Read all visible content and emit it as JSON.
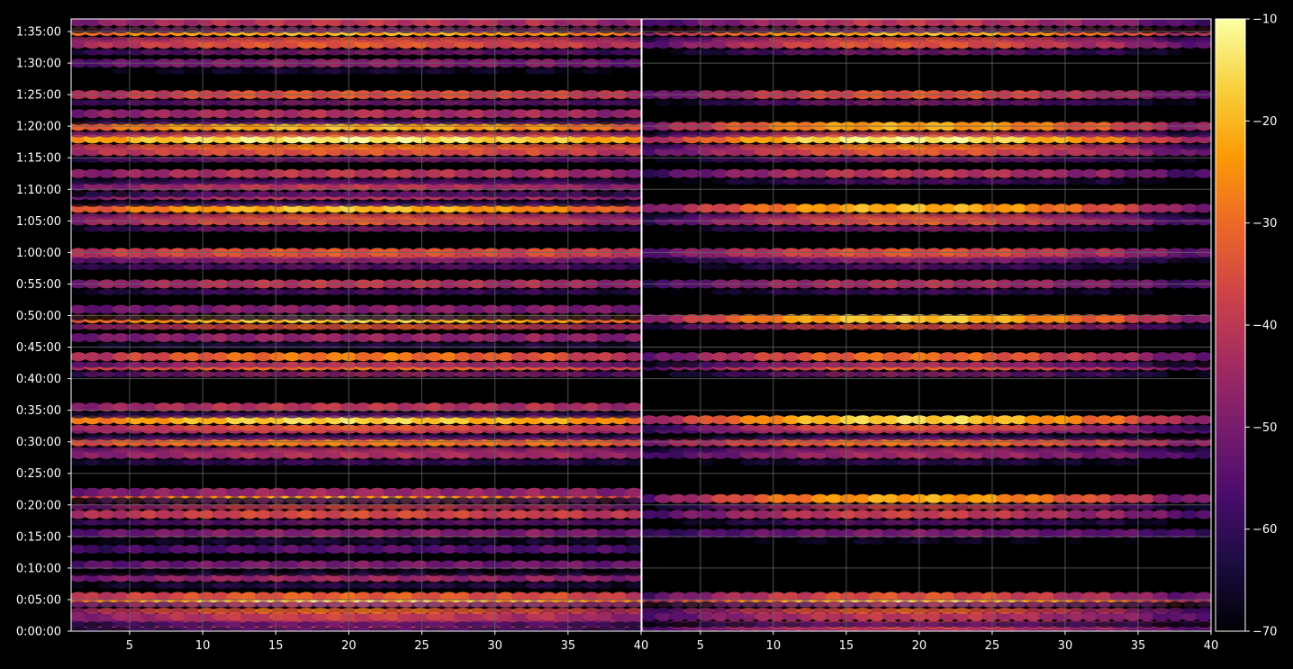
{
  "colors": {
    "background": "#000000",
    "foreground": "#ffffff",
    "grid": "#666666",
    "colormap": "inferno",
    "colormap_stops": [
      "#000004",
      "#1b0c41",
      "#4a0c6b",
      "#781c6d",
      "#a52c60",
      "#cf4446",
      "#ed6925",
      "#fb9b06",
      "#f7d13d",
      "#fcffa4"
    ]
  },
  "chart_data": [
    {
      "type": "heatmap",
      "panel": "left",
      "x_ticks": [
        "5",
        "10",
        "15",
        "20",
        "25",
        "30",
        "35",
        "40"
      ],
      "x_tick_values": [
        5,
        10,
        15,
        20,
        25,
        30,
        35,
        40
      ],
      "xlim": [
        1,
        40
      ],
      "y_ticks": [
        "0:00:00",
        "0:05:00",
        "0:10:00",
        "0:15:00",
        "0:20:00",
        "0:25:00",
        "0:30:00",
        "0:35:00",
        "0:40:00",
        "0:45:00",
        "0:50:00",
        "0:55:00",
        "1:00:00",
        "1:05:00",
        "1:10:00",
        "1:15:00",
        "1:20:00",
        "1:25:00",
        "1:30:00",
        "1:35:00"
      ],
      "y_tick_values_s": [
        0,
        300,
        600,
        900,
        1200,
        1500,
        1800,
        2100,
        2400,
        2700,
        3000,
        3300,
        3600,
        3900,
        4200,
        4500,
        4800,
        5100,
        5400,
        5700
      ],
      "ylim_s": [
        0,
        5820
      ],
      "grid": true,
      "x_columns": 40,
      "bands": [
        {
          "t": 12,
          "base": -52,
          "peak": -40
        },
        {
          "t": 60,
          "base": -48,
          "peak": -35
        },
        {
          "t": 90,
          "base": -52,
          "peak": -42
        },
        {
          "t": 140,
          "base": -50,
          "peak": -38
        },
        {
          "t": 270,
          "base": -29,
          "peak": -14
        },
        {
          "t": 330,
          "base": -42,
          "peak": -32
        },
        {
          "t": 510,
          "base": -52,
          "peak": -45
        },
        {
          "t": 630,
          "base": -56,
          "peak": -50
        },
        {
          "t": 780,
          "base": -60,
          "peak": -55
        },
        {
          "t": 930,
          "base": -55,
          "peak": -48
        },
        {
          "t": 1110,
          "base": -44,
          "peak": -36
        },
        {
          "t": 1260,
          "base": -38,
          "peak": -22
        },
        {
          "t": 1320,
          "base": -52,
          "peak": -45
        },
        {
          "t": 1680,
          "base": -50,
          "peak": -42
        },
        {
          "t": 1800,
          "base": -36,
          "peak": -28
        },
        {
          "t": 1920,
          "base": -48,
          "peak": -40
        },
        {
          "t": 2010,
          "base": -30,
          "peak": -16
        },
        {
          "t": 2130,
          "base": -48,
          "peak": -40
        },
        {
          "t": 2520,
          "base": -42,
          "peak": -30
        },
        {
          "t": 2610,
          "base": -44,
          "peak": -28
        },
        {
          "t": 2790,
          "base": -52,
          "peak": -46
        },
        {
          "t": 2970,
          "base": -34,
          "peak": -17
        },
        {
          "t": 3060,
          "base": -54,
          "peak": -48
        },
        {
          "t": 3300,
          "base": -50,
          "peak": -40
        },
        {
          "t": 3540,
          "base": -46,
          "peak": -38
        },
        {
          "t": 3600,
          "base": -42,
          "peak": -34
        },
        {
          "t": 3900,
          "base": -48,
          "peak": -34
        },
        {
          "t": 4020,
          "base": -36,
          "peak": -19
        },
        {
          "t": 4140,
          "base": -52,
          "peak": -42
        },
        {
          "t": 4230,
          "base": -52,
          "peak": -40
        },
        {
          "t": 4350,
          "base": -50,
          "peak": -40
        },
        {
          "t": 4560,
          "base": -44,
          "peak": -34
        },
        {
          "t": 4680,
          "base": -26,
          "peak": -12
        },
        {
          "t": 4800,
          "base": -34,
          "peak": -20
        },
        {
          "t": 4920,
          "base": -50,
          "peak": -42
        },
        {
          "t": 5100,
          "base": -44,
          "peak": -34
        },
        {
          "t": 5400,
          "base": -56,
          "peak": -48
        },
        {
          "t": 5580,
          "base": -45,
          "peak": -33
        },
        {
          "t": 5700,
          "base": -32,
          "peak": -20
        },
        {
          "t": 5790,
          "base": -50,
          "peak": -40
        }
      ]
    },
    {
      "type": "heatmap",
      "panel": "right",
      "x_ticks": [
        "5",
        "10",
        "15",
        "20",
        "25",
        "30",
        "35",
        "40"
      ],
      "x_tick_values": [
        5,
        10,
        15,
        20,
        25,
        30,
        35,
        40
      ],
      "xlim": [
        1,
        40
      ],
      "ylim_s": [
        0,
        5820
      ],
      "grid": true,
      "x_columns": 40,
      "bands": [
        {
          "t": 12,
          "base": -58,
          "peak": -42
        },
        {
          "t": 60,
          "base": -56,
          "peak": -36
        },
        {
          "t": 140,
          "base": -58,
          "peak": -40
        },
        {
          "t": 270,
          "base": -42,
          "peak": -16
        },
        {
          "t": 330,
          "base": -56,
          "peak": -34
        },
        {
          "t": 930,
          "base": -62,
          "peak": -50
        },
        {
          "t": 1110,
          "base": -58,
          "peak": -38
        },
        {
          "t": 1260,
          "base": -54,
          "peak": -22
        },
        {
          "t": 1680,
          "base": -60,
          "peak": -44
        },
        {
          "t": 1800,
          "base": -50,
          "peak": -30
        },
        {
          "t": 1920,
          "base": -60,
          "peak": -42
        },
        {
          "t": 2010,
          "base": -48,
          "peak": -16
        },
        {
          "t": 2520,
          "base": -56,
          "peak": -32
        },
        {
          "t": 2610,
          "base": -56,
          "peak": -30
        },
        {
          "t": 2970,
          "base": -50,
          "peak": -18
        },
        {
          "t": 3300,
          "base": -60,
          "peak": -42
        },
        {
          "t": 3540,
          "base": -60,
          "peak": -40
        },
        {
          "t": 3600,
          "base": -56,
          "peak": -34
        },
        {
          "t": 3900,
          "base": -60,
          "peak": -34
        },
        {
          "t": 4020,
          "base": -52,
          "peak": -20
        },
        {
          "t": 4350,
          "base": -60,
          "peak": -40
        },
        {
          "t": 4560,
          "base": -56,
          "peak": -34
        },
        {
          "t": 4680,
          "base": -46,
          "peak": -12
        },
        {
          "t": 4800,
          "base": -50,
          "peak": -22
        },
        {
          "t": 5100,
          "base": -56,
          "peak": -34
        },
        {
          "t": 5580,
          "base": -56,
          "peak": -34
        },
        {
          "t": 5700,
          "base": -46,
          "peak": -20
        },
        {
          "t": 5790,
          "base": -60,
          "peak": -40
        }
      ]
    },
    {
      "type": "colorbar",
      "ticks": [
        "−10",
        "−20",
        "−30",
        "−40",
        "−50",
        "−60",
        "−70"
      ],
      "tick_values": [
        -10,
        -20,
        -30,
        -40,
        -50,
        -60,
        -70
      ],
      "range": [
        -70,
        -10
      ]
    }
  ]
}
